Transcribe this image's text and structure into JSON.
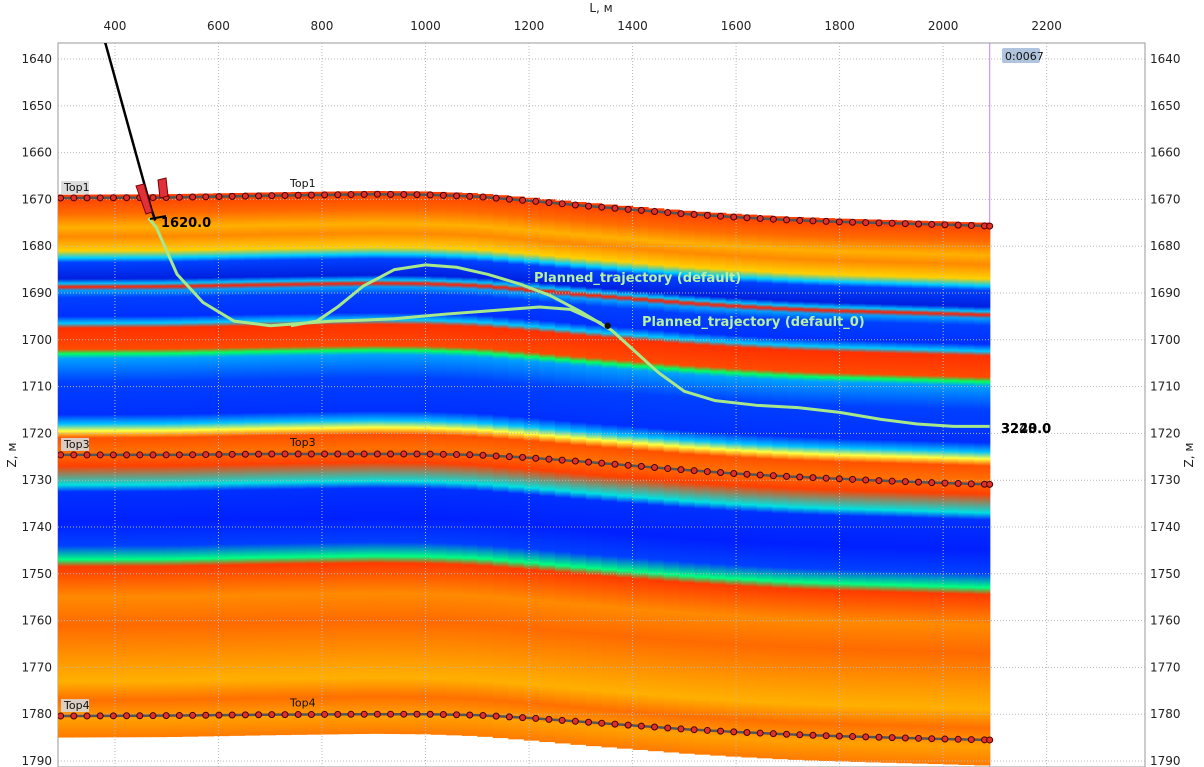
{
  "chart_data": {
    "type": "line",
    "xlabel": "L, м",
    "ylabel": "Z, м",
    "ylabel_right": "Z, м",
    "xlim": [
      290,
      2390
    ],
    "ylim": [
      1791,
      1636
    ],
    "x_ticks": [
      400,
      600,
      800,
      1000,
      1200,
      1400,
      1600,
      1800,
      2000,
      2200
    ],
    "y_ticks": [
      1640,
      1650,
      1660,
      1670,
      1680,
      1690,
      1700,
      1710,
      1720,
      1730,
      1740,
      1750,
      1760,
      1770,
      1780,
      1790
    ],
    "grid": true,
    "section_x_end": 2090,
    "cursor_label": "0:0067",
    "horizons": [
      {
        "name": "Top1",
        "label": "Top1",
        "label_left": "Top1",
        "x": [
          290,
          500,
          700,
          900,
          1000,
          1100,
          1200,
          1300,
          1400,
          1500,
          1600,
          1700,
          1800,
          1900,
          2000,
          2090
        ],
        "z": [
          1669.7,
          1669.6,
          1669.2,
          1668.9,
          1669.0,
          1669.4,
          1670.3,
          1671.3,
          1672.2,
          1673.1,
          1673.8,
          1674.4,
          1674.8,
          1675.1,
          1675.4,
          1675.7
        ]
      },
      {
        "name": "Top3",
        "label": "Top3",
        "label_left": "Top3",
        "x": [
          290,
          500,
          700,
          900,
          1000,
          1100,
          1200,
          1300,
          1400,
          1500,
          1600,
          1700,
          1800,
          1900,
          2000,
          2090
        ],
        "z": [
          1724.6,
          1724.6,
          1724.4,
          1724.4,
          1724.4,
          1724.6,
          1725.2,
          1726.0,
          1726.9,
          1727.8,
          1728.6,
          1729.2,
          1729.7,
          1730.2,
          1730.6,
          1730.9
        ]
      },
      {
        "name": "Top4",
        "label": "Top4",
        "label_left": "Top4",
        "x": [
          290,
          500,
          700,
          900,
          1000,
          1100,
          1200,
          1300,
          1400,
          1500,
          1600,
          1700,
          1800,
          1900,
          2000,
          2090
        ],
        "z": [
          1780.4,
          1780.3,
          1780.1,
          1780.0,
          1780.0,
          1780.2,
          1780.8,
          1781.6,
          1782.4,
          1783.2,
          1783.8,
          1784.3,
          1784.7,
          1785.0,
          1785.3,
          1785.5
        ]
      }
    ],
    "series": [
      {
        "name": "Planned_trajectory (default)",
        "x": [
          465,
          480,
          520,
          570,
          630,
          700,
          760,
          820,
          880,
          940,
          990,
          1040,
          1100,
          1160,
          1220,
          1280,
          1340
        ],
        "z": [
          1674,
          1676,
          1686,
          1692,
          1696,
          1697,
          1696.5,
          1696,
          1695.8,
          1695.5,
          1695,
          1694.5,
          1694,
          1693.5,
          1693,
          1693.5,
          1696.5
        ],
        "color": "#a8e88a"
      },
      {
        "name": "Planned_trajectory (default_0)",
        "x": [
          740,
          790,
          830,
          880,
          940,
          1000,
          1060,
          1120,
          1180,
          1240,
          1300,
          1360,
          1400,
          1450,
          1500,
          1560,
          1640,
          1720,
          1800,
          1880,
          1950,
          2020,
          2090
        ],
        "z": [
          1697,
          1696,
          1693,
          1688.5,
          1685,
          1684,
          1684.5,
          1686,
          1688,
          1690.5,
          1694,
          1698,
          1702,
          1707,
          1711,
          1713,
          1714,
          1714.5,
          1715.5,
          1717,
          1718,
          1718.5,
          1718.5
        ],
        "color": "#a8e88a"
      }
    ],
    "well": {
      "label": "1620.0",
      "label_end": "3243.0",
      "label_end_overlap": "3220.0",
      "x": [
        380,
        405,
        430,
        455,
        470,
        478
      ],
      "z": [
        1636,
        1646,
        1656,
        1666,
        1672,
        1674.5
      ]
    },
    "marker_point": {
      "x": 1352,
      "z": 1697
    },
    "legend": {
      "Planned_trajectory (default)": "Planned_trajectory (default)",
      "Planned_trajectory (default_0)": "Planned_trajectory (default_0)"
    }
  }
}
